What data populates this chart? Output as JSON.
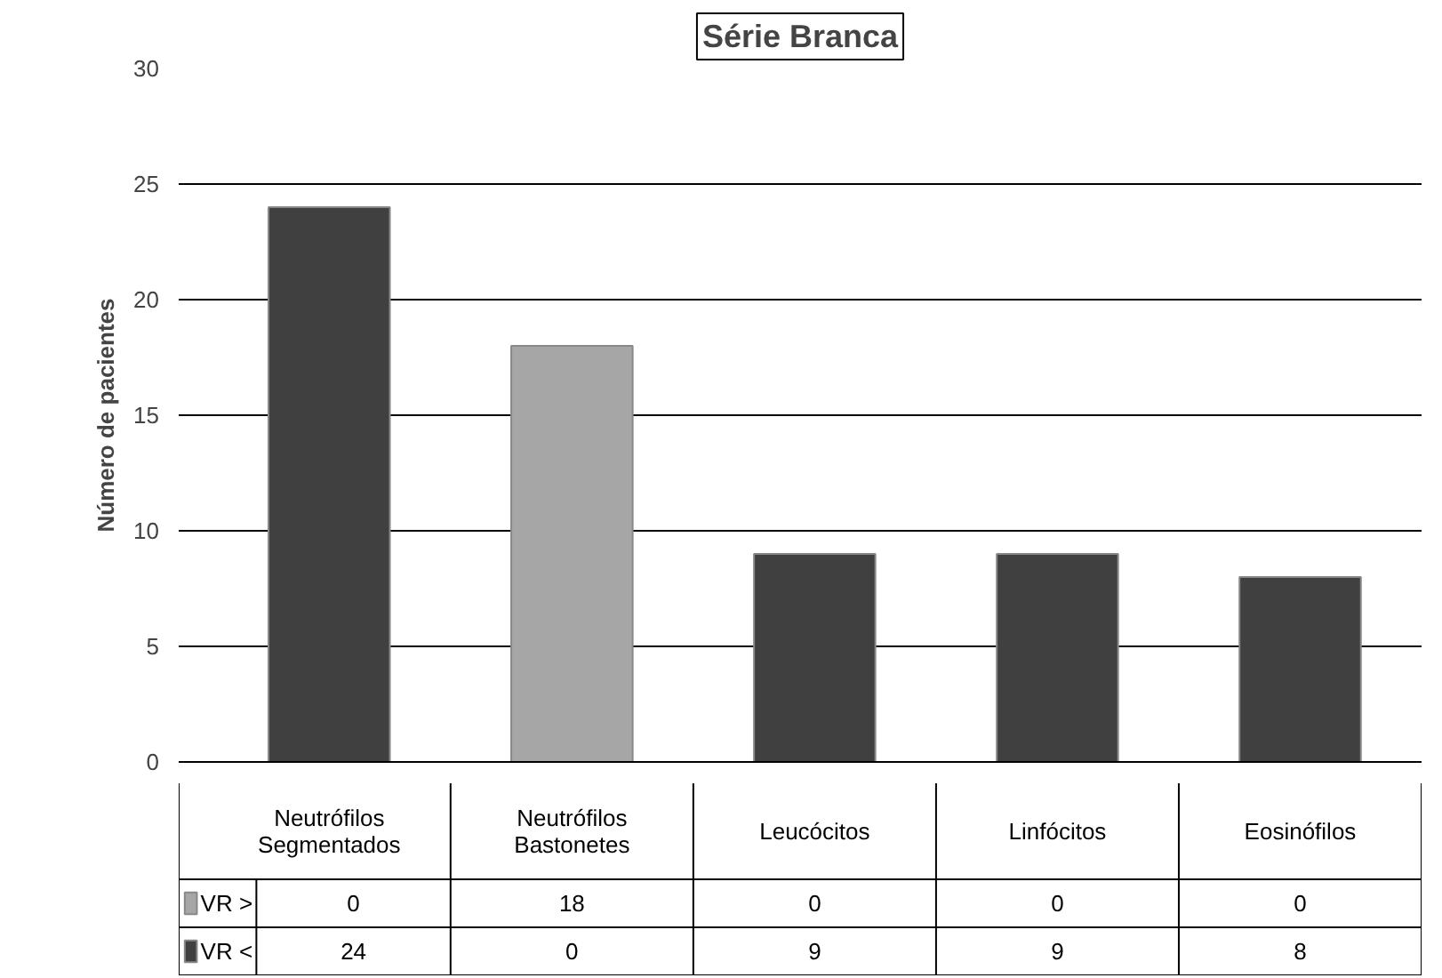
{
  "chart_data": {
    "type": "bar",
    "title": "Série Branca",
    "ylabel": "Número de pacientes",
    "categories": [
      "Neutrófilos\nSegmentados",
      "Neutrófilos\nBastonetes",
      "Leucócitos",
      "Linfócitos",
      "Eosinófilos"
    ],
    "series": [
      {
        "name": "VR >",
        "color": "#a6a6a6",
        "values": [
          0,
          18,
          0,
          0,
          0
        ]
      },
      {
        "name": "VR <",
        "color": "#404040",
        "values": [
          24,
          0,
          9,
          9,
          8
        ]
      }
    ],
    "stacked": true,
    "ylim": [
      0,
      30
    ],
    "yticks": [
      0,
      5,
      10,
      15,
      20,
      25,
      30
    ],
    "grid": "y",
    "data_labels": true,
    "legend": "bottom left"
  }
}
